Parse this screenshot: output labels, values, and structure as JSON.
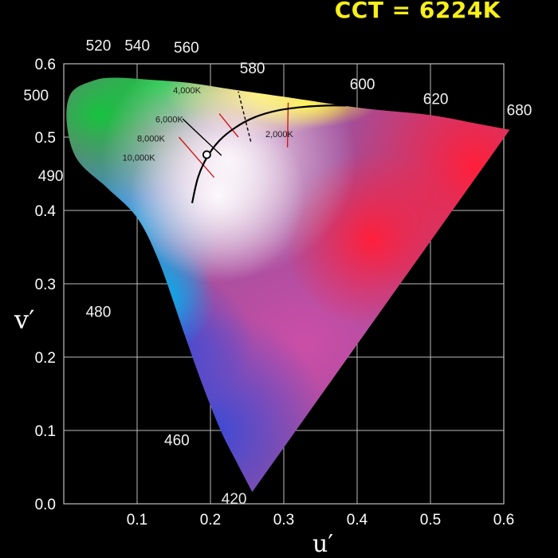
{
  "header": {
    "cct_label": "CCT = 6224K"
  },
  "chart_data": {
    "type": "scatter",
    "title": "",
    "xlabel": "u′",
    "ylabel": "v′",
    "xlim": [
      0.0,
      0.6
    ],
    "ylim": [
      0.0,
      0.6
    ],
    "grid": true,
    "x_ticks": [
      {
        "value": 0.1,
        "label": "0.1"
      },
      {
        "value": 0.2,
        "label": "0.2"
      },
      {
        "value": 0.3,
        "label": "0.3"
      },
      {
        "value": 0.4,
        "label": "0.4"
      },
      {
        "value": 0.5,
        "label": "0.5"
      },
      {
        "value": 0.6,
        "label": "0.6"
      }
    ],
    "y_ticks": [
      {
        "value": 0.0,
        "label": "0.0"
      },
      {
        "value": 0.1,
        "label": "0.1"
      },
      {
        "value": 0.2,
        "label": "0.2"
      },
      {
        "value": 0.3,
        "label": "0.3"
      },
      {
        "value": 0.4,
        "label": "0.4"
      },
      {
        "value": 0.5,
        "label": "0.5"
      },
      {
        "value": 0.6,
        "label": "0.6"
      }
    ],
    "spectral_locus": [
      {
        "u": 0.257,
        "v": 0.016
      },
      {
        "u": 0.234,
        "v": 0.06
      },
      {
        "u": 0.214,
        "v": 0.1
      },
      {
        "u": 0.19,
        "v": 0.16
      },
      {
        "u": 0.165,
        "v": 0.23
      },
      {
        "u": 0.13,
        "v": 0.33
      },
      {
        "u": 0.1,
        "v": 0.39
      },
      {
        "u": 0.06,
        "v": 0.43
      },
      {
        "u": 0.018,
        "v": 0.47
      },
      {
        "u": 0.004,
        "v": 0.52
      },
      {
        "u": 0.01,
        "v": 0.56
      },
      {
        "u": 0.04,
        "v": 0.577
      },
      {
        "u": 0.07,
        "v": 0.581
      },
      {
        "u": 0.12,
        "v": 0.578
      },
      {
        "u": 0.17,
        "v": 0.574
      },
      {
        "u": 0.23,
        "v": 0.565
      },
      {
        "u": 0.3,
        "v": 0.555
      },
      {
        "u": 0.36,
        "v": 0.546
      },
      {
        "u": 0.42,
        "v": 0.538
      },
      {
        "u": 0.5,
        "v": 0.53
      },
      {
        "u": 0.565,
        "v": 0.518
      },
      {
        "u": 0.608,
        "v": 0.51
      }
    ],
    "wavelength_labels": [
      {
        "label": "520",
        "u": 0.03,
        "v": 0.618
      },
      {
        "label": "540",
        "u": 0.083,
        "v": 0.618
      },
      {
        "label": "560",
        "u": 0.15,
        "v": 0.615
      },
      {
        "label": "580",
        "u": 0.24,
        "v": 0.587
      },
      {
        "label": "600",
        "u": 0.39,
        "v": 0.565
      },
      {
        "label": "620",
        "u": 0.49,
        "v": 0.545
      },
      {
        "label": "680",
        "u": 0.604,
        "v": 0.53
      },
      {
        "label": "500",
        "u": -0.055,
        "v": 0.55
      },
      {
        "label": "490",
        "u": -0.035,
        "v": 0.44
      },
      {
        "label": "480",
        "u": 0.03,
        "v": 0.255
      },
      {
        "label": "460",
        "u": 0.137,
        "v": 0.08
      },
      {
        "label": "420",
        "u": 0.215,
        "v": 0.0
      }
    ],
    "planckian_locus": [
      {
        "u": 0.175,
        "v": 0.41
      },
      {
        "u": 0.183,
        "v": 0.445
      },
      {
        "u": 0.195,
        "v": 0.472
      },
      {
        "u": 0.212,
        "v": 0.495
      },
      {
        "u": 0.234,
        "v": 0.513
      },
      {
        "u": 0.26,
        "v": 0.527
      },
      {
        "u": 0.29,
        "v": 0.536
      },
      {
        "u": 0.325,
        "v": 0.541
      },
      {
        "u": 0.36,
        "v": 0.543
      },
      {
        "u": 0.385,
        "v": 0.543
      }
    ],
    "isotherms": [
      {
        "label": "2,000K",
        "u1": 0.305,
        "v1": 0.486,
        "u2": 0.306,
        "v2": 0.547,
        "color": "#cc1b1b",
        "label_u": 0.275,
        "label_v": 0.5
      },
      {
        "label": "4,000K",
        "u1": 0.255,
        "v1": 0.494,
        "u2": 0.238,
        "v2": 0.562,
        "color": "#000000",
        "label_u": 0.149,
        "label_v": 0.56
      },
      {
        "label": "6,000K",
        "u1": 0.238,
        "v1": 0.5,
        "u2": 0.212,
        "v2": 0.532,
        "color": "#cc1b1b",
        "label_u": 0.125,
        "label_v": 0.52
      },
      {
        "label": "8,000K",
        "u1": 0.215,
        "v1": 0.475,
        "u2": 0.162,
        "v2": 0.525,
        "color": "#000000",
        "label_u": 0.1,
        "label_v": 0.494
      },
      {
        "label": "10,000K",
        "u1": 0.205,
        "v1": 0.445,
        "u2": 0.157,
        "v2": 0.5,
        "color": "#cc1b1b",
        "label_u": 0.08,
        "label_v": 0.468
      }
    ],
    "marker": {
      "u": 0.195,
      "v": 0.476
    }
  }
}
